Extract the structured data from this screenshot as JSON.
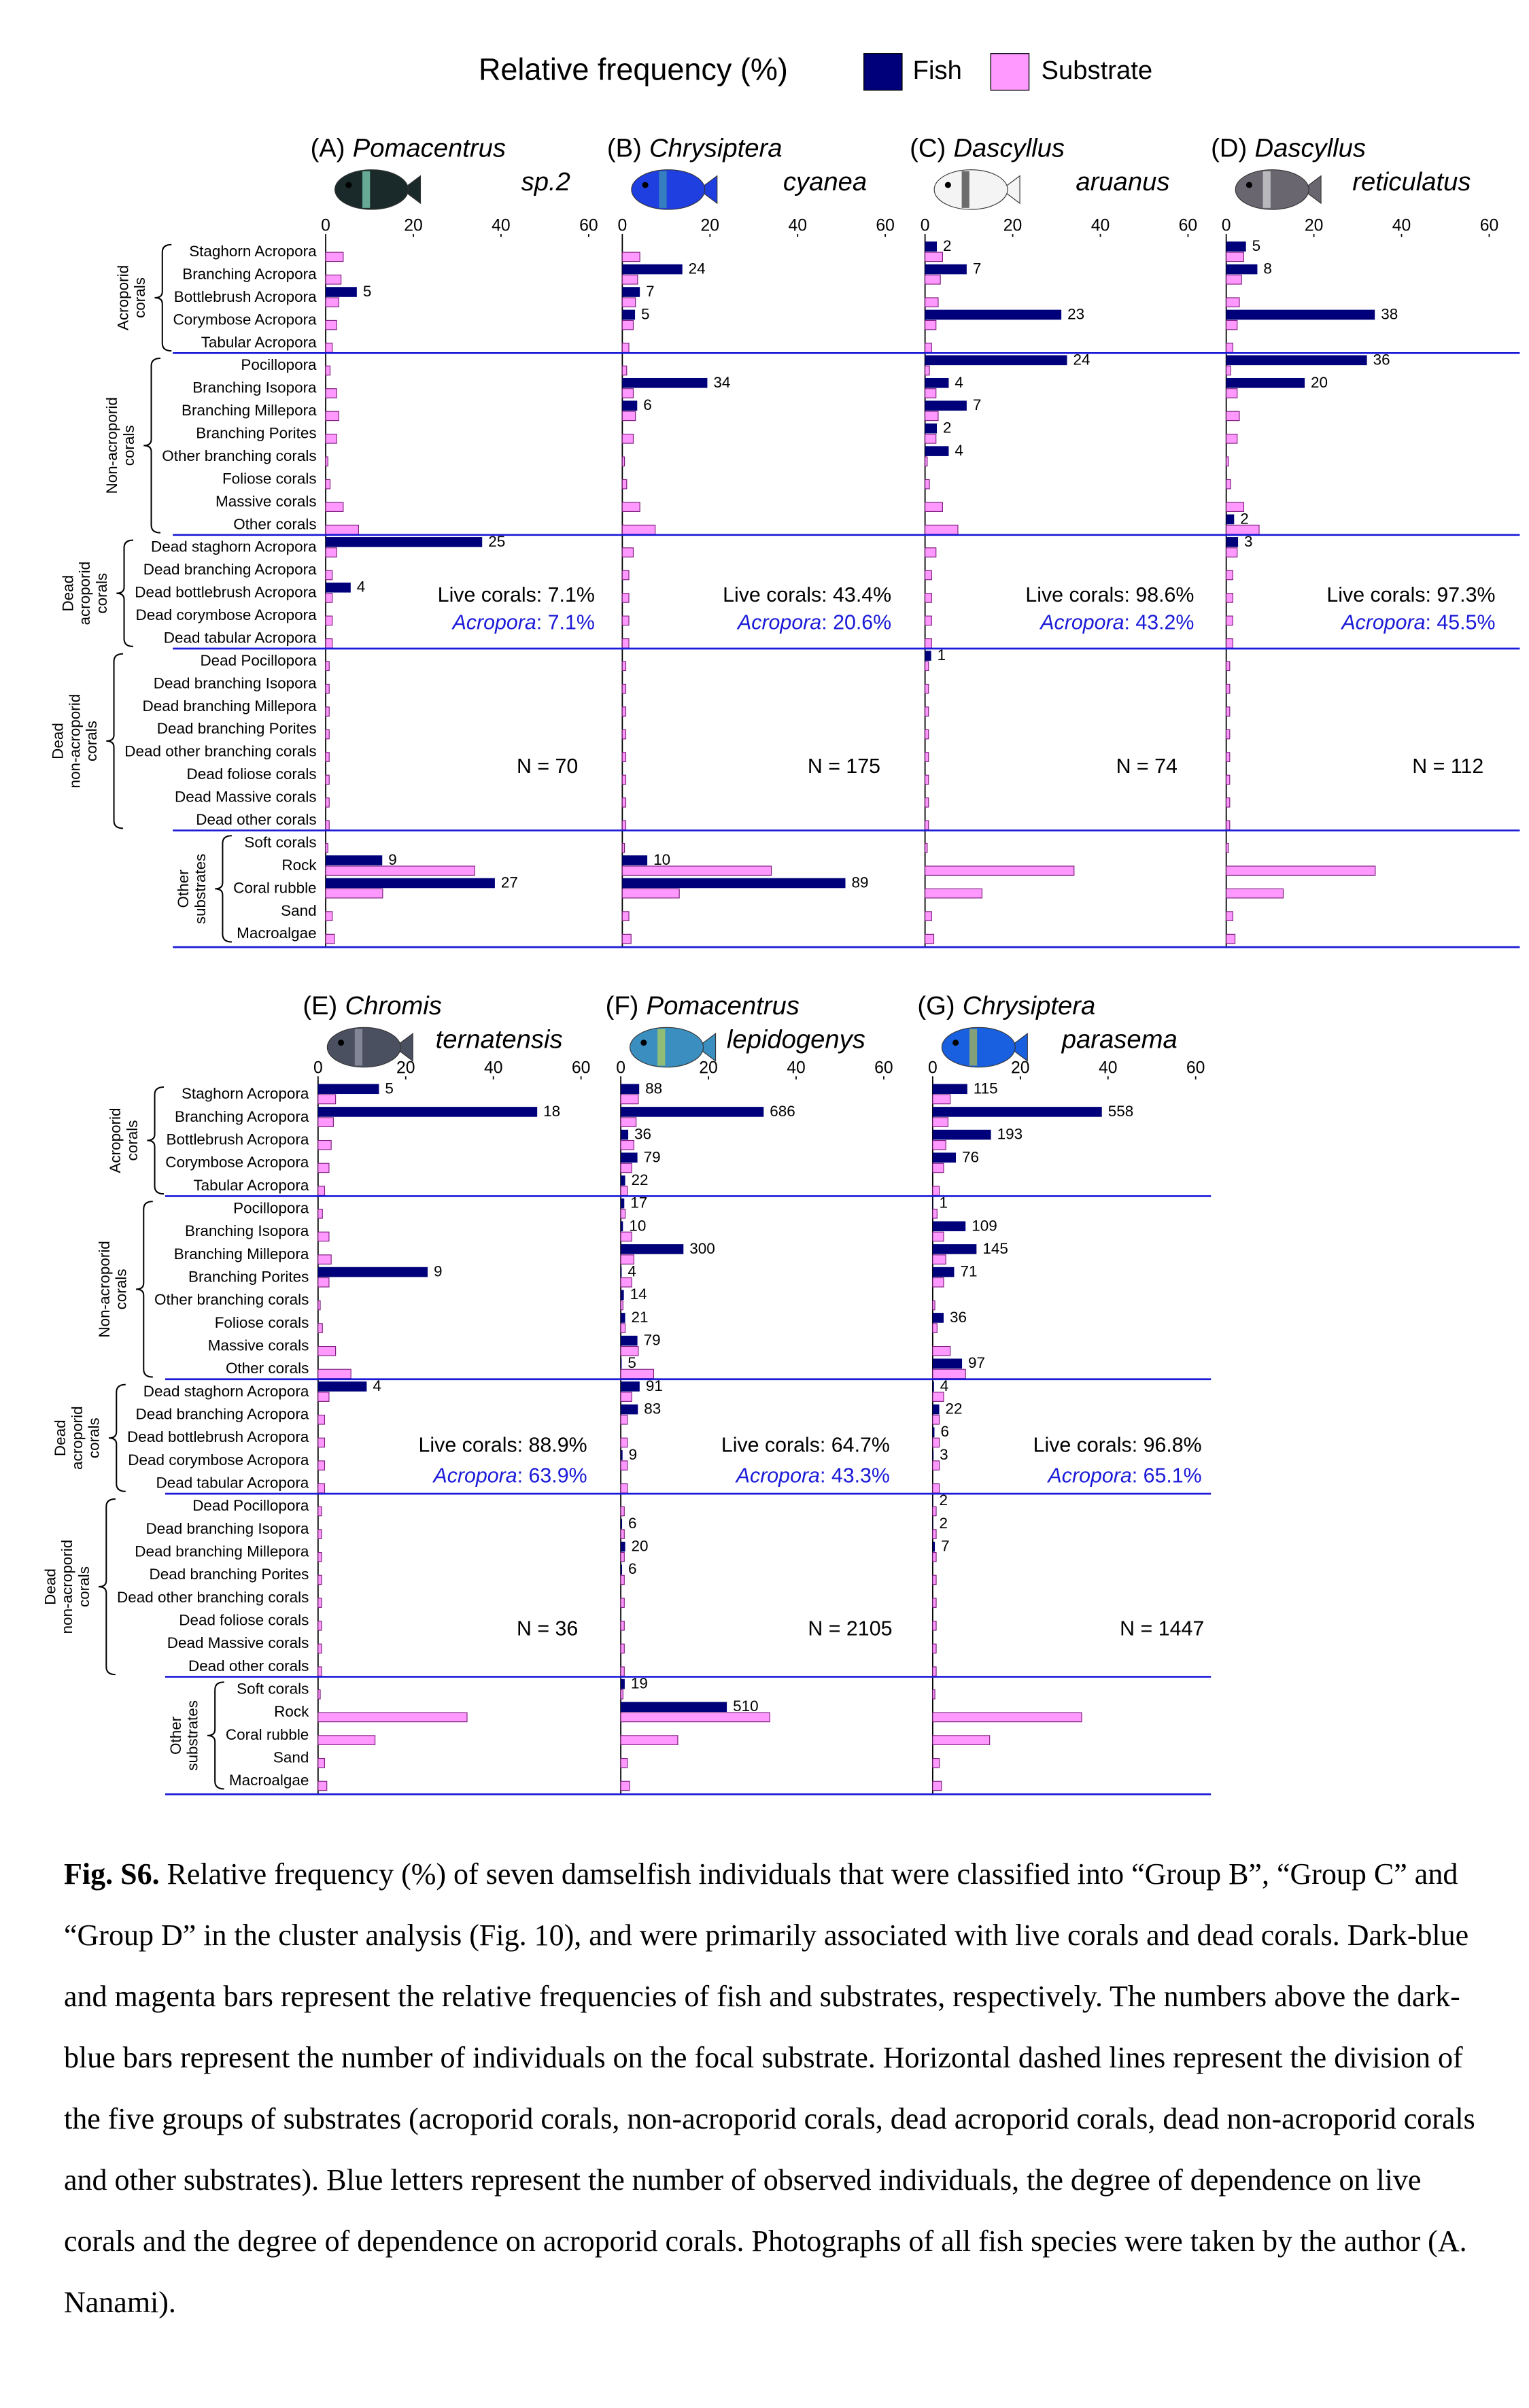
{
  "legend_title": "Relative frequency (%)",
  "chart_data": [
    {
      "type": "bar",
      "label": "(A)",
      "genus": "Pomacentrus",
      "species": "sp.2",
      "xlim": [
        0,
        60
      ],
      "xticks": [
        0,
        20,
        40,
        60
      ],
      "groups": [
        {
          "lines": [
            "Acroporid",
            "corals"
          ],
          "categories": [
            "Staghorn Acropora",
            "Branching Acropora",
            "Bottlebrush Acropora",
            "Corymbose Acropora",
            "Tabular Acropora"
          ]
        },
        {
          "lines": [
            "Non-acroporid",
            "corals"
          ],
          "categories": [
            "Pocillopora",
            "Branching Isopora",
            "Branching Millepora",
            "Branching Porites",
            "Other branching corals",
            "Foliose corals",
            "Massive corals",
            "Other corals"
          ]
        },
        {
          "lines": [
            "Dead",
            "acroporid",
            "corals"
          ],
          "categories": [
            "Dead staghorn Acropora",
            "Dead branching Acropora",
            "Dead bottlebrush Acropora",
            "Dead corymbose Acropora",
            "Dead tabular Acropora"
          ]
        },
        {
          "lines": [
            "Dead",
            "non-acroporid",
            "corals"
          ],
          "categories": [
            "Dead Pocillopora",
            "Dead branching Isopora",
            "Dead branching Millepora",
            "Dead branching Porites",
            "Dead other branching corals",
            "Dead foliose corals",
            "Dead Massive corals",
            "Dead other corals"
          ]
        },
        {
          "lines": [
            "Other",
            "substrates"
          ],
          "categories": [
            "Soft corals",
            "Rock",
            "Coral rubble",
            "Sand",
            "Macroalgae"
          ]
        }
      ],
      "series": [
        {
          "name": "Fish",
          "color": "#00007a",
          "values": [
            0,
            0,
            7.1,
            0,
            0,
            0,
            0,
            0,
            0,
            0,
            0,
            0,
            0,
            35.7,
            0,
            5.7,
            0,
            0,
            0,
            0,
            0,
            0,
            0,
            0,
            0,
            0,
            0,
            12.9,
            38.6,
            0,
            0
          ],
          "counts": [
            null,
            null,
            5,
            null,
            null,
            null,
            null,
            null,
            null,
            null,
            null,
            null,
            null,
            25,
            null,
            4,
            null,
            null,
            null,
            null,
            null,
            null,
            null,
            null,
            null,
            null,
            null,
            9,
            27,
            null,
            null
          ]
        },
        {
          "name": "Substrate",
          "color": "#ff99ff",
          "values": [
            4,
            3.5,
            3,
            2.5,
            1.5,
            1,
            2.5,
            3,
            2.5,
            0.5,
            1,
            4,
            7.5,
            2.5,
            1.5,
            1.5,
            1.5,
            1.5,
            0.8,
            0.8,
            0.8,
            0.8,
            0.8,
            0.8,
            0.8,
            0.8,
            0.5,
            34,
            13,
            1.5,
            2
          ]
        }
      ],
      "live": "Live corals: 7.1%",
      "acropora": [
        "Acropora",
        ": 7.1%"
      ],
      "n": "N = 70"
    },
    {
      "type": "bar",
      "label": "(B)",
      "genus": "Chrysiptera",
      "species": "cyanea",
      "xlim": [
        0,
        60
      ],
      "xticks": [
        0,
        20,
        40,
        60
      ],
      "series": [
        {
          "name": "Fish",
          "color": "#00007a",
          "values": [
            0,
            13.7,
            4.0,
            2.9,
            0,
            0,
            19.4,
            3.4,
            0,
            0,
            0,
            0,
            0,
            0,
            0,
            0,
            0,
            0,
            0,
            0,
            0,
            0,
            0,
            0,
            0,
            0,
            0,
            5.7,
            50.9,
            0,
            0
          ],
          "counts": [
            null,
            24,
            7,
            5,
            null,
            null,
            34,
            6,
            null,
            null,
            null,
            null,
            null,
            null,
            null,
            null,
            null,
            null,
            null,
            null,
            null,
            null,
            null,
            null,
            null,
            null,
            null,
            10,
            89,
            null,
            null
          ]
        },
        {
          "name": "Substrate",
          "color": "#ff99ff",
          "values": [
            4,
            3.5,
            3,
            2.5,
            1.5,
            1,
            2.5,
            3,
            2.5,
            0.5,
            1,
            4,
            7.5,
            2.5,
            1.5,
            1.5,
            1.5,
            1.5,
            0.8,
            0.8,
            0.8,
            0.8,
            0.8,
            0.8,
            0.8,
            0.8,
            0.5,
            34,
            13,
            1.5,
            2
          ]
        }
      ],
      "live": "Live corals: 43.4%",
      "acropora": [
        "Acropora",
        ": 20.6%"
      ],
      "n": "N = 175"
    },
    {
      "type": "bar",
      "label": "(C)",
      "genus": "Dascyllus",
      "species": "aruanus",
      "xlim": [
        0,
        60
      ],
      "xticks": [
        0,
        20,
        40,
        60
      ],
      "series": [
        {
          "name": "Fish",
          "color": "#00007a",
          "values": [
            2.7,
            9.5,
            0,
            31.1,
            0,
            32.4,
            5.4,
            9.5,
            2.7,
            5.4,
            0,
            0,
            0,
            0,
            0,
            0,
            0,
            0,
            1.4,
            0,
            0,
            0,
            0,
            0,
            0,
            0,
            0,
            0,
            0,
            0,
            0
          ],
          "counts": [
            2,
            7,
            null,
            23,
            null,
            24,
            4,
            7,
            2,
            4,
            null,
            null,
            null,
            null,
            null,
            null,
            null,
            null,
            1,
            null,
            null,
            null,
            null,
            null,
            null,
            null,
            null,
            null,
            null,
            null,
            null
          ]
        },
        {
          "name": "Substrate",
          "color": "#ff99ff",
          "values": [
            4,
            3.5,
            3,
            2.5,
            1.5,
            1,
            2.5,
            3,
            2.5,
            0.5,
            1,
            4,
            7.5,
            2.5,
            1.5,
            1.5,
            1.5,
            1.5,
            0.8,
            0.8,
            0.8,
            0.8,
            0.8,
            0.8,
            0.8,
            0.8,
            0.5,
            34,
            13,
            1.5,
            2
          ]
        }
      ],
      "live": "Live corals: 98.6%",
      "acropora": [
        "Acropora",
        ": 43.2%"
      ],
      "n": "N = 74"
    },
    {
      "type": "bar",
      "label": "(D)",
      "genus": "Dascyllus",
      "species": "reticulatus",
      "xlim": [
        0,
        60
      ],
      "xticks": [
        0,
        20,
        40,
        60
      ],
      "series": [
        {
          "name": "Fish",
          "color": "#00007a",
          "values": [
            4.5,
            7.1,
            0,
            33.9,
            0,
            32.1,
            17.9,
            0,
            0,
            0,
            0,
            0,
            1.8,
            2.7,
            0,
            0,
            0,
            0,
            0,
            0,
            0,
            0,
            0,
            0,
            0,
            0,
            0,
            0,
            0,
            0,
            0
          ],
          "counts": [
            5,
            8,
            null,
            38,
            null,
            36,
            20,
            null,
            null,
            null,
            null,
            null,
            2,
            3,
            null,
            null,
            null,
            null,
            null,
            null,
            null,
            null,
            null,
            null,
            null,
            null,
            null,
            null,
            null,
            null,
            null
          ]
        },
        {
          "name": "Substrate",
          "color": "#ff99ff",
          "values": [
            4,
            3.5,
            3,
            2.5,
            1.5,
            1,
            2.5,
            3,
            2.5,
            0.5,
            1,
            4,
            7.5,
            2.5,
            1.5,
            1.5,
            1.5,
            1.5,
            0.8,
            0.8,
            0.8,
            0.8,
            0.8,
            0.8,
            0.8,
            0.8,
            0.5,
            34,
            13,
            1.5,
            2
          ]
        }
      ],
      "live": "Live corals: 97.3%",
      "acropora": [
        "Acropora",
        ": 45.5%"
      ],
      "n": "N = 112"
    },
    {
      "type": "bar",
      "label": "(E)",
      "genus": "Chromis",
      "species": "ternatensis",
      "xlim": [
        0,
        60
      ],
      "xticks": [
        0,
        20,
        40,
        60
      ],
      "groups": [
        {
          "lines": [
            "Acroporid",
            "corals"
          ],
          "categories": [
            "Staghorn Acropora",
            "Branching Acropora",
            "Bottlebrush Acropora",
            "Corymbose Acropora",
            "Tabular Acropora"
          ]
        },
        {
          "lines": [
            "Non-acroporid",
            "corals"
          ],
          "categories": [
            "Pocillopora",
            "Branching Isopora",
            "Branching Millepora",
            "Branching Porites",
            "Other branching corals",
            "Foliose corals",
            "Massive corals",
            "Other corals"
          ]
        },
        {
          "lines": [
            "Dead",
            "acroporid",
            "corals"
          ],
          "categories": [
            "Dead staghorn Acropora",
            "Dead branching Acropora",
            "Dead bottlebrush Acropora",
            "Dead corymbose Acropora",
            "Dead tabular Acropora"
          ]
        },
        {
          "lines": [
            "Dead",
            "non-acroporid",
            "corals"
          ],
          "categories": [
            "Dead Pocillopora",
            "Dead branching Isopora",
            "Dead branching Millepora",
            "Dead branching Porites",
            "Dead other branching corals",
            "Dead foliose corals",
            "Dead Massive corals",
            "Dead other corals"
          ]
        },
        {
          "lines": [
            "Other",
            "substrates"
          ],
          "categories": [
            "Soft corals",
            "Rock",
            "Coral rubble",
            "Sand",
            "Macroalgae"
          ]
        }
      ],
      "series": [
        {
          "name": "Fish",
          "color": "#00007a",
          "values": [
            13.9,
            50,
            0,
            0,
            0,
            0,
            0,
            0,
            25,
            0,
            0,
            0,
            0,
            11.1,
            0,
            0,
            0,
            0,
            0,
            0,
            0,
            0,
            0,
            0,
            0,
            0,
            0,
            0,
            0,
            0,
            0
          ],
          "counts": [
            5,
            18,
            null,
            null,
            null,
            null,
            null,
            null,
            9,
            null,
            null,
            null,
            null,
            4,
            null,
            null,
            null,
            null,
            null,
            null,
            null,
            null,
            null,
            null,
            null,
            null,
            null,
            null,
            null,
            null,
            null
          ]
        },
        {
          "name": "Substrate",
          "color": "#ff99ff",
          "values": [
            4,
            3.5,
            3,
            2.5,
            1.5,
            1,
            2.5,
            3,
            2.5,
            0.5,
            1,
            4,
            7.5,
            2.5,
            1.5,
            1.5,
            1.5,
            1.5,
            0.8,
            0.8,
            0.8,
            0.8,
            0.8,
            0.8,
            0.8,
            0.8,
            0.5,
            34,
            13,
            1.5,
            2
          ]
        }
      ],
      "live": "Live corals: 88.9%",
      "acropora": [
        "Acropora",
        ": 63.9%"
      ],
      "n": "N = 36"
    },
    {
      "type": "bar",
      "label": "(F)",
      "genus": "Pomacentrus",
      "species": "lepidogenys",
      "xlim": [
        0,
        60
      ],
      "xticks": [
        0,
        20,
        40,
        60
      ],
      "series": [
        {
          "name": "Fish",
          "color": "#00007a",
          "values": [
            4.2,
            32.6,
            1.7,
            3.8,
            1.0,
            0.8,
            0.5,
            14.3,
            0.2,
            0.7,
            1.0,
            3.8,
            0.2,
            4.3,
            3.9,
            0,
            0.4,
            0,
            0,
            0.3,
            1.0,
            0.3,
            0,
            0,
            0,
            0,
            0.9,
            24.2,
            0,
            0,
            0
          ],
          "counts": [
            88,
            686,
            36,
            79,
            22,
            17,
            10,
            300,
            4,
            14,
            21,
            79,
            5,
            91,
            83,
            null,
            9,
            null,
            null,
            6,
            20,
            6,
            null,
            null,
            null,
            null,
            19,
            510,
            null,
            null,
            null
          ]
        },
        {
          "name": "Substrate",
          "color": "#ff99ff",
          "values": [
            4,
            3.5,
            3,
            2.5,
            1.5,
            1,
            2.5,
            3,
            2.5,
            0.5,
            1,
            4,
            7.5,
            2.5,
            1.5,
            1.5,
            1.5,
            1.5,
            0.8,
            0.8,
            0.8,
            0.8,
            0.8,
            0.8,
            0.8,
            0.8,
            0.5,
            34,
            13,
            1.5,
            2
          ]
        }
      ],
      "live": "Live corals: 64.7%",
      "acropora": [
        "Acropora",
        ": 43.3%"
      ],
      "n": "N = 2105"
    },
    {
      "type": "bar",
      "label": "(G)",
      "genus": "Chrysiptera",
      "species": "parasema",
      "xlim": [
        0,
        60
      ],
      "xticks": [
        0,
        20,
        40,
        60
      ],
      "series": [
        {
          "name": "Fish",
          "color": "#00007a",
          "values": [
            7.9,
            38.6,
            13.3,
            5.3,
            0,
            0.1,
            7.5,
            10.0,
            4.9,
            0,
            2.5,
            0,
            6.7,
            0.3,
            1.5,
            0.4,
            0.2,
            0,
            0.1,
            0.1,
            0.5,
            0,
            0,
            0,
            0,
            0,
            0,
            0,
            0,
            0,
            0
          ],
          "counts": [
            115,
            558,
            193,
            76,
            null,
            1,
            109,
            145,
            71,
            null,
            36,
            null,
            97,
            4,
            22,
            6,
            3,
            null,
            2,
            2,
            7,
            null,
            null,
            null,
            null,
            null,
            null,
            null,
            null,
            null,
            null
          ]
        },
        {
          "name": "Substrate",
          "color": "#ff99ff",
          "values": [
            4,
            3.5,
            3,
            2.5,
            1.5,
            1,
            2.5,
            3,
            2.5,
            0.5,
            1,
            4,
            7.5,
            2.5,
            1.5,
            1.5,
            1.5,
            1.5,
            0.8,
            0.8,
            0.8,
            0.8,
            0.8,
            0.8,
            0.8,
            0.8,
            0.5,
            34,
            13,
            1.5,
            2
          ]
        }
      ],
      "live": "Live corals: 96.8%",
      "acropora": [
        "Acropora",
        ": 65.1%"
      ],
      "n": "N = 1447"
    }
  ],
  "caption": {
    "label": "Fig. S6.",
    "text": "Relative frequency (%) of seven damselfish individuals that were classified into “Group B”, “Group C” and “Group D” in the cluster analysis (Fig. 10), and were primarily associated with live corals and dead corals. Dark-blue and magenta bars represent the relative frequencies of fish and substrates, respectively. The numbers above the dark-blue bars represent the number of individuals on the focal substrate. Horizontal dashed lines represent the division of the five groups of substrates (acroporid corals, non-acroporid corals, dead acroporid corals, dead non-acroporid corals and other substrates). Blue letters represent the number of observed individuals, the degree of dependence on live corals and the degree of dependence on acroporid corals. Photographs of all fish species were taken by the author (A. Nanami)."
  }
}
